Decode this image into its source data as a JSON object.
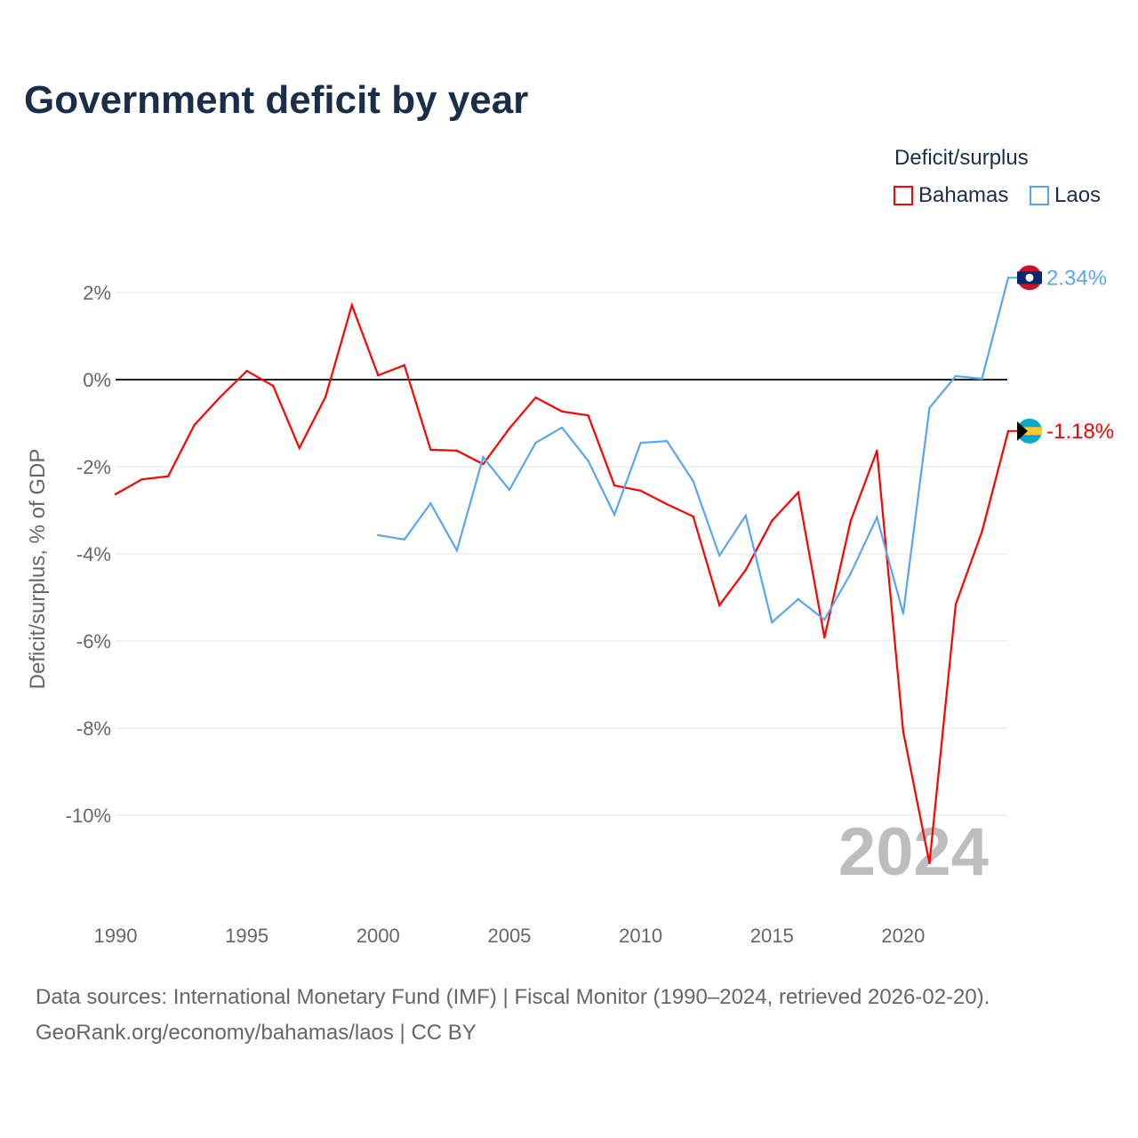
{
  "title": "Government deficit by year",
  "legend": {
    "title": "Deficit/surplus",
    "entries": [
      "Bahamas",
      "Laos"
    ]
  },
  "footer": {
    "source": "Data sources: International Monetary Fund (IMF) | Fiscal Monitor (1990–2024, retrieved 2026-02-20).",
    "credit": "GeoRank.org/economy/bahamas/laos | CC BY"
  },
  "chart_data": {
    "type": "line",
    "title": "Government deficit by year",
    "xlabel": "",
    "ylabel": "Deficit/surplus, % of GDP",
    "xlim": [
      1990,
      2024
    ],
    "ylim": [
      -11.9,
      2.6
    ],
    "x_ticks": [
      "1990",
      "1995",
      "2000",
      "2005",
      "2010",
      "2015",
      "2020"
    ],
    "y_ticks": [
      {
        "v": 2,
        "label": "2%"
      },
      {
        "v": 0,
        "label": "0%"
      },
      {
        "v": -2,
        "label": "-2%"
      },
      {
        "v": -4,
        "label": "-4%"
      },
      {
        "v": -6,
        "label": "-6%"
      },
      {
        "v": -8,
        "label": "-8%"
      },
      {
        "v": -10,
        "label": "-10%"
      }
    ],
    "year_watermark": "2024",
    "legend_position": "top-right",
    "series": [
      {
        "name": "Bahamas",
        "color": "#ff0000",
        "end_label": "-1.18%",
        "start_year": 1990,
        "values": [
          -2.63,
          -2.29,
          -2.22,
          -1.04,
          -0.39,
          0.2,
          -0.14,
          -1.57,
          -0.39,
          1.71,
          0.1,
          0.33,
          -1.61,
          -1.63,
          -1.94,
          -1.12,
          -0.41,
          -0.73,
          -0.82,
          -2.43,
          -2.55,
          -2.86,
          -3.14,
          -5.18,
          -4.37,
          -3.24,
          -2.59,
          -5.92,
          -3.24,
          -1.63,
          -8.08,
          -11.1,
          -5.16,
          -3.49,
          -1.18
        ]
      },
      {
        "name": "Laos",
        "color": "#5aa6ee",
        "end_label": "2.34%",
        "start_year": 2000,
        "values": [
          -3.57,
          -3.67,
          -2.84,
          -3.92,
          -1.78,
          -2.53,
          -1.45,
          -1.1,
          -1.86,
          -3.1,
          -1.45,
          -1.41,
          -2.33,
          -4.04,
          -3.12,
          -5.57,
          -5.04,
          -5.51,
          -4.45,
          -3.16,
          -5.37,
          -0.65,
          0.08,
          0.02,
          2.34
        ]
      }
    ]
  }
}
